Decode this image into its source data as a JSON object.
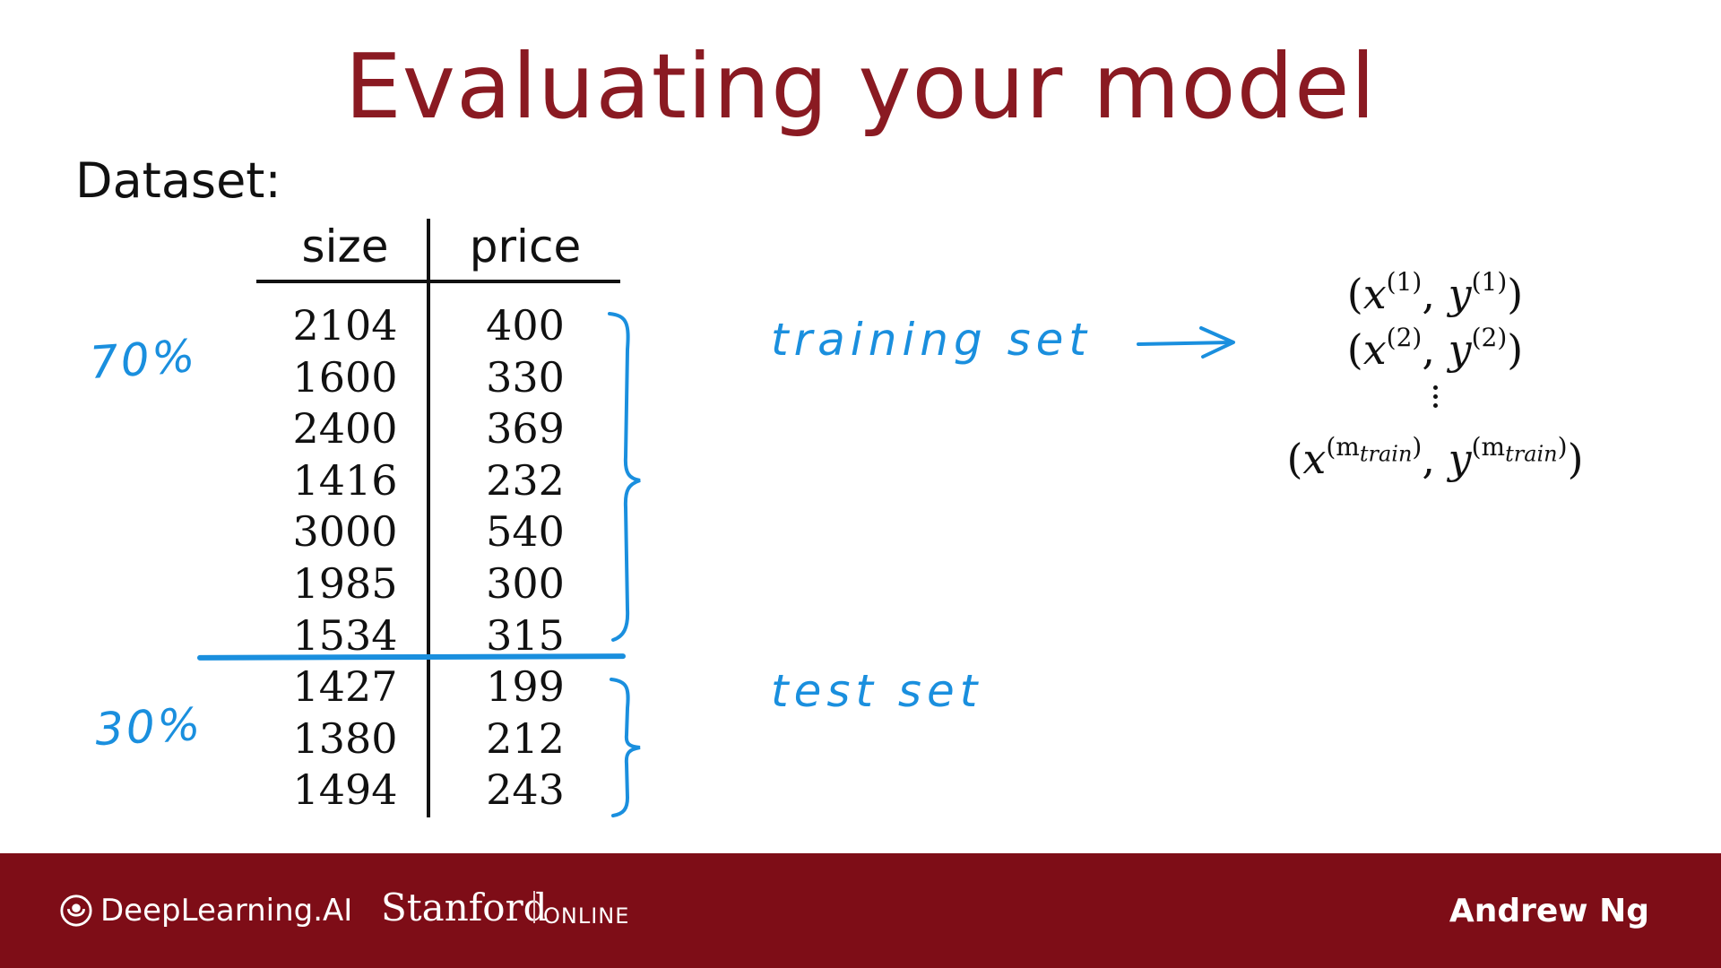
{
  "slide": {
    "title": "Evaluating your model",
    "dataset_label": "Dataset:"
  },
  "table": {
    "headers": [
      "size",
      "price"
    ],
    "rows": [
      [
        "2104",
        "400"
      ],
      [
        "1600",
        "330"
      ],
      [
        "2400",
        "369"
      ],
      [
        "1416",
        "232"
      ],
      [
        "3000",
        "540"
      ],
      [
        "1985",
        "300"
      ],
      [
        "1534",
        "315"
      ],
      [
        "1427",
        "199"
      ],
      [
        "1380",
        "212"
      ],
      [
        "1494",
        "243"
      ]
    ]
  },
  "annotations": {
    "train_percent": "70%",
    "test_percent": "30%",
    "training_set_label": "training set",
    "test_set_label": "test set",
    "color": "#1a8fde"
  },
  "math": {
    "rows": [
      {
        "x": "x",
        "x_sup": "(1)",
        "y": "y",
        "y_sup": "(1)"
      },
      {
        "x": "x",
        "x_sup": "(2)",
        "y": "y",
        "y_sup": "(2)"
      },
      {
        "x": "x",
        "x_sup": "(m",
        "x_sub": "train",
        "x_close": ")",
        "y": "y",
        "y_sup": "(m",
        "y_sub": "train",
        "y_close": ")"
      }
    ]
  },
  "footer": {
    "brand_deeplearning": "DeepLearning.AI",
    "brand_stanford": "Stanford",
    "brand_online": "ONLINE",
    "presenter": "Andrew Ng",
    "background": "#7e0d17"
  },
  "colors": {
    "title": "#8a1a22",
    "handwriting": "#1a8fde"
  }
}
